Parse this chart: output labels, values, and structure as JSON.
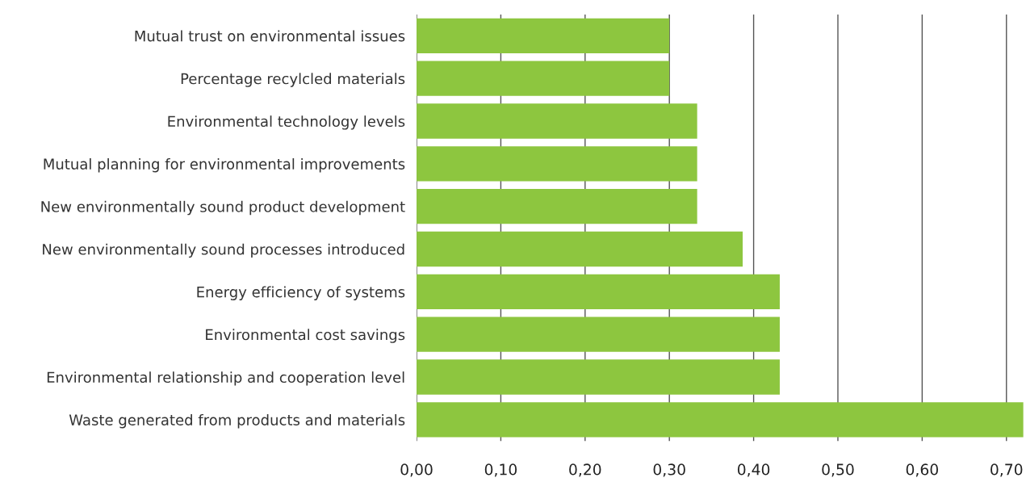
{
  "chart_data": {
    "type": "bar",
    "orientation": "horizontal",
    "color": "#8dc63f",
    "categories": [
      "Mutual trust on environmental issues",
      "Percentage recylcled materials",
      "Environmental technology levels",
      "Mutual planning for environmental improvements",
      "New environmentally sound product development",
      "New environmentally sound processes introduced",
      "Energy efficiency of systems",
      "Environmental cost savings",
      "Environmental relationship and cooperation level",
      "Waste generated from products and materials"
    ],
    "values": [
      0.3,
      0.3,
      0.333,
      0.333,
      0.333,
      0.387,
      0.431,
      0.431,
      0.431,
      0.72
    ],
    "xlim": [
      0,
      0.722
    ],
    "xticks": [
      {
        "value": 0,
        "label": "0,00"
      },
      {
        "value": 0.1,
        "label": "0,10"
      },
      {
        "value": 0.2,
        "label": "0,20"
      },
      {
        "value": 0.3,
        "label": "0,30"
      },
      {
        "value": 0.4,
        "label": "0,40"
      },
      {
        "value": 0.5,
        "label": "0,50"
      },
      {
        "value": 0.6,
        "label": "0,60"
      },
      {
        "value": 0.7,
        "label": "0,70"
      }
    ],
    "grid": "x"
  }
}
